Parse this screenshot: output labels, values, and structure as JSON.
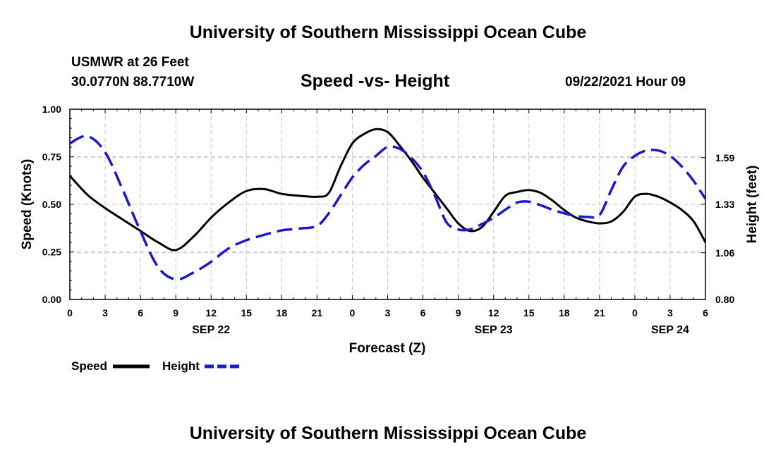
{
  "page": {
    "title_top": "University of Southern Mississippi Ocean Cube",
    "title_bottom": "University of Southern Mississippi Ocean Cube",
    "station": "USMWR at 26 Feet",
    "coords": "30.0770N  88.7710W",
    "chart_title": "Speed -vs- Height",
    "datetime": "09/22/2021 Hour 09"
  },
  "colors": {
    "speed": "#000000",
    "height": "#1a1acc",
    "grid": "#c8c8c8"
  },
  "chart_data": {
    "type": "line",
    "title": "Speed -vs- Height",
    "xlabel": "Forecast (Z)",
    "ylabel": "Speed (Knots)",
    "y2label": "Height (feet)",
    "x_range": [
      0,
      54
    ],
    "ylim": [
      0,
      1.0
    ],
    "y2lim": [
      0.8,
      1.86
    ],
    "y_ticks": [
      0,
      0.25,
      0.5,
      0.75,
      1.0
    ],
    "y_tick_labels": [
      "0.00",
      "0.25",
      "0.50",
      "0.75",
      "1.00"
    ],
    "y2_ticks": [
      0.8,
      1.06,
      1.33,
      1.59
    ],
    "y2_tick_labels": [
      "0.80",
      "1.06",
      "1.33",
      "1.59"
    ],
    "x_ticks": [
      0,
      3,
      6,
      9,
      12,
      15,
      18,
      21,
      24,
      27,
      30,
      33,
      36,
      39,
      42,
      45,
      48,
      51,
      54
    ],
    "x_tick_labels": [
      "0",
      "3",
      "6",
      "9",
      "12",
      "15",
      "18",
      "21",
      "0",
      "3",
      "6",
      "9",
      "12",
      "15",
      "18",
      "21",
      "0",
      "3",
      "6"
    ],
    "date_labels": [
      {
        "x": 12,
        "label": "SEP 22"
      },
      {
        "x": 36,
        "label": "SEP 23"
      },
      {
        "x": 51,
        "label": "SEP 24"
      }
    ],
    "grid": true,
    "legend": "bottom-left",
    "series": [
      {
        "name": "Speed",
        "axis": "left",
        "style": "solid",
        "x": [
          0,
          1.5,
          3,
          4.5,
          6,
          7.5,
          9,
          10.5,
          12,
          13.5,
          15,
          16.5,
          18,
          19.5,
          21,
          22,
          23,
          24,
          25,
          26,
          27,
          28,
          29,
          30,
          31,
          32,
          33,
          34,
          35,
          36,
          37,
          38,
          39,
          40,
          41,
          42,
          43,
          44,
          45,
          46,
          47,
          48,
          49,
          50,
          51,
          52,
          53,
          54
        ],
        "values": [
          0.65,
          0.55,
          0.48,
          0.42,
          0.36,
          0.3,
          0.26,
          0.33,
          0.43,
          0.51,
          0.57,
          0.58,
          0.555,
          0.545,
          0.54,
          0.56,
          0.7,
          0.82,
          0.87,
          0.895,
          0.88,
          0.81,
          0.73,
          0.64,
          0.56,
          0.48,
          0.4,
          0.36,
          0.38,
          0.46,
          0.545,
          0.565,
          0.575,
          0.56,
          0.52,
          0.47,
          0.43,
          0.41,
          0.4,
          0.41,
          0.46,
          0.54,
          0.555,
          0.54,
          0.51,
          0.47,
          0.41,
          0.3
        ]
      },
      {
        "name": "Height",
        "axis": "right",
        "style": "dashed",
        "x": [
          0,
          1.5,
          3,
          4.5,
          6,
          7.5,
          9,
          10.5,
          12,
          13.5,
          15,
          16.5,
          18,
          19.5,
          21,
          22,
          23,
          24,
          25,
          26,
          27,
          28,
          29,
          30,
          31,
          32,
          33,
          34,
          35,
          36,
          37,
          38,
          39,
          40,
          41,
          42,
          43,
          44,
          45,
          46,
          47,
          48,
          49,
          50,
          51,
          52,
          53,
          54
        ],
        "values": [
          1.67,
          1.71,
          1.62,
          1.41,
          1.18,
          0.98,
          0.912,
          0.95,
          1.01,
          1.085,
          1.13,
          1.16,
          1.185,
          1.195,
          1.21,
          1.28,
          1.38,
          1.48,
          1.55,
          1.6,
          1.65,
          1.64,
          1.59,
          1.51,
          1.38,
          1.23,
          1.19,
          1.19,
          1.22,
          1.255,
          1.3,
          1.34,
          1.345,
          1.325,
          1.3,
          1.28,
          1.265,
          1.26,
          1.27,
          1.41,
          1.54,
          1.6,
          1.63,
          1.63,
          1.6,
          1.54,
          1.46,
          1.36
        ]
      }
    ]
  }
}
